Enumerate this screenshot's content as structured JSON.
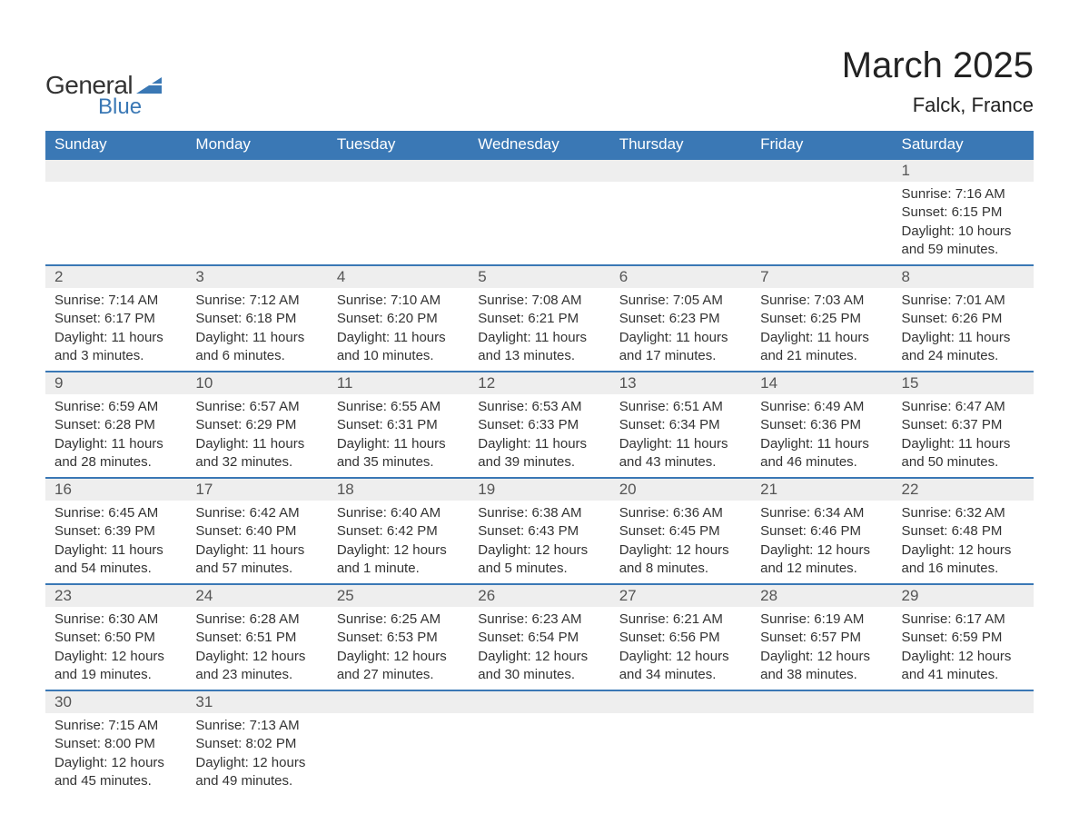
{
  "branding": {
    "logo_word1": "General",
    "logo_word2": "Blue",
    "logo_shape_color": "#3a78b5",
    "logo_text_color": "#333333"
  },
  "title": {
    "month_year": "March 2025",
    "location": "Falck, France",
    "title_fontsize": 40,
    "location_fontsize": 22,
    "text_color": "#222222"
  },
  "calendar": {
    "type": "table",
    "header_bg": "#3a78b5",
    "header_fg": "#ffffff",
    "row_divider_color": "#3a78b5",
    "daynum_bg": "#eeeeee",
    "daynum_fg": "#555555",
    "body_fg": "#333333",
    "background_color": "#ffffff",
    "header_fontsize": 17,
    "daynum_fontsize": 17,
    "body_fontsize": 15,
    "columns": [
      "Sunday",
      "Monday",
      "Tuesday",
      "Wednesday",
      "Thursday",
      "Friday",
      "Saturday"
    ],
    "weeks": [
      [
        {
          "empty": true
        },
        {
          "empty": true
        },
        {
          "empty": true
        },
        {
          "empty": true
        },
        {
          "empty": true
        },
        {
          "empty": true
        },
        {
          "day": "1",
          "sunrise": "Sunrise: 7:16 AM",
          "sunset": "Sunset: 6:15 PM",
          "daylight1": "Daylight: 10 hours",
          "daylight2": "and 59 minutes."
        }
      ],
      [
        {
          "day": "2",
          "sunrise": "Sunrise: 7:14 AM",
          "sunset": "Sunset: 6:17 PM",
          "daylight1": "Daylight: 11 hours",
          "daylight2": "and 3 minutes."
        },
        {
          "day": "3",
          "sunrise": "Sunrise: 7:12 AM",
          "sunset": "Sunset: 6:18 PM",
          "daylight1": "Daylight: 11 hours",
          "daylight2": "and 6 minutes."
        },
        {
          "day": "4",
          "sunrise": "Sunrise: 7:10 AM",
          "sunset": "Sunset: 6:20 PM",
          "daylight1": "Daylight: 11 hours",
          "daylight2": "and 10 minutes."
        },
        {
          "day": "5",
          "sunrise": "Sunrise: 7:08 AM",
          "sunset": "Sunset: 6:21 PM",
          "daylight1": "Daylight: 11 hours",
          "daylight2": "and 13 minutes."
        },
        {
          "day": "6",
          "sunrise": "Sunrise: 7:05 AM",
          "sunset": "Sunset: 6:23 PM",
          "daylight1": "Daylight: 11 hours",
          "daylight2": "and 17 minutes."
        },
        {
          "day": "7",
          "sunrise": "Sunrise: 7:03 AM",
          "sunset": "Sunset: 6:25 PM",
          "daylight1": "Daylight: 11 hours",
          "daylight2": "and 21 minutes."
        },
        {
          "day": "8",
          "sunrise": "Sunrise: 7:01 AM",
          "sunset": "Sunset: 6:26 PM",
          "daylight1": "Daylight: 11 hours",
          "daylight2": "and 24 minutes."
        }
      ],
      [
        {
          "day": "9",
          "sunrise": "Sunrise: 6:59 AM",
          "sunset": "Sunset: 6:28 PM",
          "daylight1": "Daylight: 11 hours",
          "daylight2": "and 28 minutes."
        },
        {
          "day": "10",
          "sunrise": "Sunrise: 6:57 AM",
          "sunset": "Sunset: 6:29 PM",
          "daylight1": "Daylight: 11 hours",
          "daylight2": "and 32 minutes."
        },
        {
          "day": "11",
          "sunrise": "Sunrise: 6:55 AM",
          "sunset": "Sunset: 6:31 PM",
          "daylight1": "Daylight: 11 hours",
          "daylight2": "and 35 minutes."
        },
        {
          "day": "12",
          "sunrise": "Sunrise: 6:53 AM",
          "sunset": "Sunset: 6:33 PM",
          "daylight1": "Daylight: 11 hours",
          "daylight2": "and 39 minutes."
        },
        {
          "day": "13",
          "sunrise": "Sunrise: 6:51 AM",
          "sunset": "Sunset: 6:34 PM",
          "daylight1": "Daylight: 11 hours",
          "daylight2": "and 43 minutes."
        },
        {
          "day": "14",
          "sunrise": "Sunrise: 6:49 AM",
          "sunset": "Sunset: 6:36 PM",
          "daylight1": "Daylight: 11 hours",
          "daylight2": "and 46 minutes."
        },
        {
          "day": "15",
          "sunrise": "Sunrise: 6:47 AM",
          "sunset": "Sunset: 6:37 PM",
          "daylight1": "Daylight: 11 hours",
          "daylight2": "and 50 minutes."
        }
      ],
      [
        {
          "day": "16",
          "sunrise": "Sunrise: 6:45 AM",
          "sunset": "Sunset: 6:39 PM",
          "daylight1": "Daylight: 11 hours",
          "daylight2": "and 54 minutes."
        },
        {
          "day": "17",
          "sunrise": "Sunrise: 6:42 AM",
          "sunset": "Sunset: 6:40 PM",
          "daylight1": "Daylight: 11 hours",
          "daylight2": "and 57 minutes."
        },
        {
          "day": "18",
          "sunrise": "Sunrise: 6:40 AM",
          "sunset": "Sunset: 6:42 PM",
          "daylight1": "Daylight: 12 hours",
          "daylight2": "and 1 minute."
        },
        {
          "day": "19",
          "sunrise": "Sunrise: 6:38 AM",
          "sunset": "Sunset: 6:43 PM",
          "daylight1": "Daylight: 12 hours",
          "daylight2": "and 5 minutes."
        },
        {
          "day": "20",
          "sunrise": "Sunrise: 6:36 AM",
          "sunset": "Sunset: 6:45 PM",
          "daylight1": "Daylight: 12 hours",
          "daylight2": "and 8 minutes."
        },
        {
          "day": "21",
          "sunrise": "Sunrise: 6:34 AM",
          "sunset": "Sunset: 6:46 PM",
          "daylight1": "Daylight: 12 hours",
          "daylight2": "and 12 minutes."
        },
        {
          "day": "22",
          "sunrise": "Sunrise: 6:32 AM",
          "sunset": "Sunset: 6:48 PM",
          "daylight1": "Daylight: 12 hours",
          "daylight2": "and 16 minutes."
        }
      ],
      [
        {
          "day": "23",
          "sunrise": "Sunrise: 6:30 AM",
          "sunset": "Sunset: 6:50 PM",
          "daylight1": "Daylight: 12 hours",
          "daylight2": "and 19 minutes."
        },
        {
          "day": "24",
          "sunrise": "Sunrise: 6:28 AM",
          "sunset": "Sunset: 6:51 PM",
          "daylight1": "Daylight: 12 hours",
          "daylight2": "and 23 minutes."
        },
        {
          "day": "25",
          "sunrise": "Sunrise: 6:25 AM",
          "sunset": "Sunset: 6:53 PM",
          "daylight1": "Daylight: 12 hours",
          "daylight2": "and 27 minutes."
        },
        {
          "day": "26",
          "sunrise": "Sunrise: 6:23 AM",
          "sunset": "Sunset: 6:54 PM",
          "daylight1": "Daylight: 12 hours",
          "daylight2": "and 30 minutes."
        },
        {
          "day": "27",
          "sunrise": "Sunrise: 6:21 AM",
          "sunset": "Sunset: 6:56 PM",
          "daylight1": "Daylight: 12 hours",
          "daylight2": "and 34 minutes."
        },
        {
          "day": "28",
          "sunrise": "Sunrise: 6:19 AM",
          "sunset": "Sunset: 6:57 PM",
          "daylight1": "Daylight: 12 hours",
          "daylight2": "and 38 minutes."
        },
        {
          "day": "29",
          "sunrise": "Sunrise: 6:17 AM",
          "sunset": "Sunset: 6:59 PM",
          "daylight1": "Daylight: 12 hours",
          "daylight2": "and 41 minutes."
        }
      ],
      [
        {
          "day": "30",
          "sunrise": "Sunrise: 7:15 AM",
          "sunset": "Sunset: 8:00 PM",
          "daylight1": "Daylight: 12 hours",
          "daylight2": "and 45 minutes."
        },
        {
          "day": "31",
          "sunrise": "Sunrise: 7:13 AM",
          "sunset": "Sunset: 8:02 PM",
          "daylight1": "Daylight: 12 hours",
          "daylight2": "and 49 minutes."
        },
        {
          "empty": true
        },
        {
          "empty": true
        },
        {
          "empty": true
        },
        {
          "empty": true
        },
        {
          "empty": true
        }
      ]
    ]
  }
}
